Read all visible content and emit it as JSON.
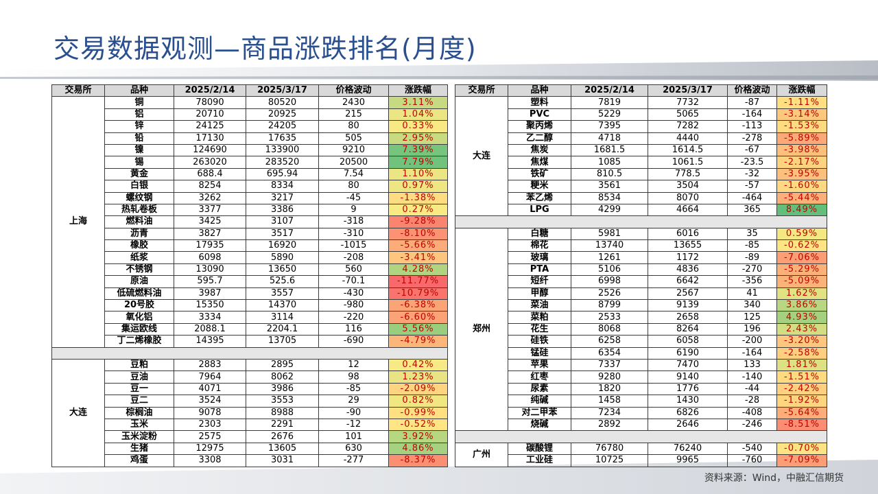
{
  "title": "交易数据观测—商品涨跌排名(月度)",
  "source": "资料来源：Wind，中融汇信期货",
  "tables": [
    {
      "header": [
        "交易所",
        "品种",
        "2025/2/14",
        "2025/3/17",
        "价格波动",
        "涨跌幅"
      ],
      "groups": [
        {
          "exchange": "上海",
          "rows": [
            [
              "铜",
              "78090",
              "80520",
              "2430",
              "3.11%"
            ],
            [
              "铝",
              "20710",
              "20925",
              "215",
              "1.04%"
            ],
            [
              "锌",
              "24125",
              "24205",
              "80",
              "0.33%"
            ],
            [
              "铅",
              "17130",
              "17635",
              "505",
              "2.95%"
            ],
            [
              "镍",
              "124690",
              "133900",
              "9210",
              "7.39%"
            ],
            [
              "锡",
              "263020",
              "283520",
              "20500",
              "7.79%"
            ],
            [
              "黄金",
              "688.4",
              "695.94",
              "7.54",
              "1.10%"
            ],
            [
              "白银",
              "8254",
              "8334",
              "80",
              "0.97%"
            ],
            [
              "螺纹钢",
              "3262",
              "3217",
              "-45",
              "-1.38%"
            ],
            [
              "热轧卷板",
              "3377",
              "3386",
              "9",
              "0.27%"
            ],
            [
              "燃料油",
              "3425",
              "3107",
              "-318",
              "-9.28%"
            ],
            [
              "沥青",
              "3827",
              "3517",
              "-310",
              "-8.10%"
            ],
            [
              "橡胶",
              "17935",
              "16920",
              "-1015",
              "-5.66%"
            ],
            [
              "纸浆",
              "6098",
              "5890",
              "-208",
              "-3.41%"
            ],
            [
              "不锈钢",
              "13090",
              "13650",
              "560",
              "4.28%"
            ],
            [
              "原油",
              "595.7",
              "525.6",
              "-70.1",
              "-11.77%"
            ],
            [
              "低硫燃料油",
              "3987",
              "3557",
              "-430",
              "-10.79%"
            ],
            [
              "20号胶",
              "15350",
              "14370",
              "-980",
              "-6.38%"
            ],
            [
              "氧化铝",
              "3334",
              "3114",
              "-220",
              "-6.60%"
            ],
            [
              "集运欧线",
              "2088.1",
              "2204.1",
              "116",
              "5.56%"
            ],
            [
              "丁二烯橡胶",
              "14395",
              "13705",
              "-690",
              "-4.79%"
            ]
          ]
        },
        {
          "exchange": "大连",
          "rows": [
            [
              "豆粕",
              "2883",
              "2895",
              "12",
              "0.42%"
            ],
            [
              "豆油",
              "7964",
              "8062",
              "98",
              "1.23%"
            ],
            [
              "豆一",
              "4071",
              "3986",
              "-85",
              "-2.09%"
            ],
            [
              "豆二",
              "3524",
              "3553",
              "29",
              "0.82%"
            ],
            [
              "棕榈油",
              "9078",
              "8988",
              "-90",
              "-0.99%"
            ],
            [
              "玉米",
              "2303",
              "2291",
              "-12",
              "-0.52%"
            ],
            [
              "玉米淀粉",
              "2575",
              "2676",
              "101",
              "3.92%"
            ],
            [
              "生猪",
              "12975",
              "13605",
              "630",
              "4.86%"
            ],
            [
              "鸡蛋",
              "3308",
              "3031",
              "-277",
              "-8.37%"
            ]
          ]
        }
      ]
    },
    {
      "header": [
        "交易所",
        "品种",
        "2025/2/14",
        "2025/3/17",
        "价格波动",
        "涨跌幅"
      ],
      "groups": [
        {
          "exchange": "大连",
          "rows": [
            [
              "塑料",
              "7819",
              "7732",
              "-87",
              "-1.11%"
            ],
            [
              "PVC",
              "5229",
              "5065",
              "-164",
              "-3.14%"
            ],
            [
              "聚丙烯",
              "7395",
              "7282",
              "-113",
              "-1.53%"
            ],
            [
              "乙二醇",
              "4718",
              "4440",
              "-278",
              "-5.89%"
            ],
            [
              "焦炭",
              "1681.5",
              "1614.5",
              "-67",
              "-3.98%"
            ],
            [
              "焦煤",
              "1085",
              "1061.5",
              "-23.5",
              "-2.17%"
            ],
            [
              "铁矿",
              "810.5",
              "778.5",
              "-32",
              "-3.95%"
            ],
            [
              "粳米",
              "3561",
              "3504",
              "-57",
              "-1.60%"
            ],
            [
              "苯乙烯",
              "8534",
              "8070",
              "-464",
              "-5.44%"
            ],
            [
              "LPG",
              "4299",
              "4664",
              "365",
              "8.49%"
            ]
          ]
        },
        {
          "exchange": "郑州",
          "rows": [
            [
              "白糖",
              "5981",
              "6016",
              "35",
              "0.59%"
            ],
            [
              "棉花",
              "13740",
              "13655",
              "-85",
              "-0.62%"
            ],
            [
              "玻璃",
              "1261",
              "1172",
              "-89",
              "-7.06%"
            ],
            [
              "PTA",
              "5106",
              "4836",
              "-270",
              "-5.29%"
            ],
            [
              "短纤",
              "6998",
              "6642",
              "-356",
              "-5.09%"
            ],
            [
              "甲醇",
              "2526",
              "2567",
              "41",
              "1.62%"
            ],
            [
              "菜油",
              "8799",
              "9139",
              "340",
              "3.86%"
            ],
            [
              "菜粕",
              "2533",
              "2658",
              "125",
              "4.93%"
            ],
            [
              "花生",
              "8068",
              "8264",
              "196",
              "2.43%"
            ],
            [
              "硅铁",
              "6258",
              "6058",
              "-200",
              "-3.20%"
            ],
            [
              "锰硅",
              "6354",
              "6190",
              "-164",
              "-2.58%"
            ],
            [
              "苹果",
              "7337",
              "7470",
              "133",
              "1.81%"
            ],
            [
              "红枣",
              "9280",
              "9140",
              "-140",
              "-1.51%"
            ],
            [
              "尿素",
              "1820",
              "1776",
              "-44",
              "-2.42%"
            ],
            [
              "纯碱",
              "1458",
              "1430",
              "-28",
              "-1.92%"
            ],
            [
              "对二甲苯",
              "7234",
              "6826",
              "-408",
              "-5.64%"
            ],
            [
              "烧碱",
              "2892",
              "2646",
              "-246",
              "-8.51%"
            ]
          ]
        },
        {
          "exchange": "广州",
          "rows": [
            [
              "碳酸锂",
              "76780",
              "76240",
              "-540",
              "-0.70%"
            ],
            [
              "工业硅",
              "10725",
              "9965",
              "-760",
              "-7.09%"
            ]
          ]
        }
      ]
    }
  ]
}
